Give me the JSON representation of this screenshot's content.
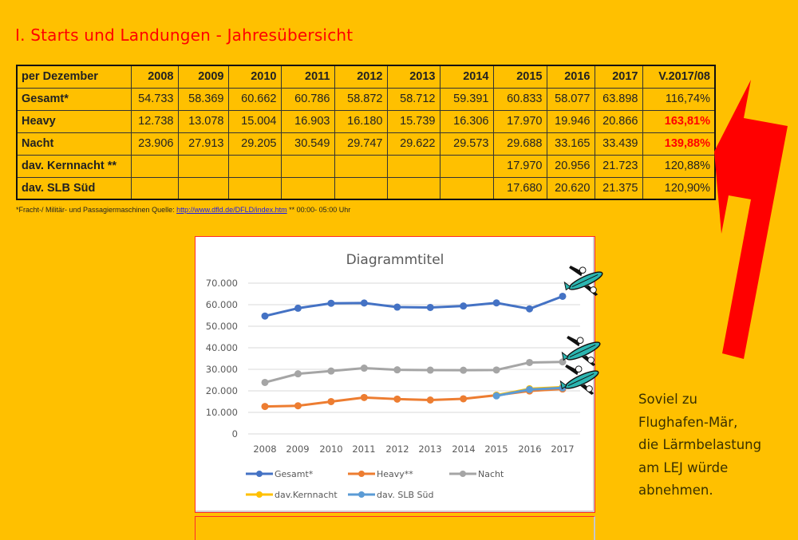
{
  "title": "I. Starts und Landungen - Jahresübersicht",
  "table": {
    "header": [
      "per Dezember",
      "2008",
      "2009",
      "2010",
      "2011",
      "2012",
      "2013",
      "2014",
      "2015",
      "2016",
      "2017",
      "V.2017/08"
    ],
    "rows": [
      {
        "label": "Gesamt*",
        "cells": [
          "54.733",
          "58.369",
          "60.662",
          "60.786",
          "58.872",
          "58.712",
          "59.391",
          "60.833",
          "58.077",
          "63.898",
          "116,74%"
        ],
        "highlight_last": false
      },
      {
        "label": "Heavy",
        "cells": [
          "12.738",
          "13.078",
          "15.004",
          "16.903",
          "16.180",
          "15.739",
          "16.306",
          "17.970",
          "19.946",
          "20.866",
          "163,81%"
        ],
        "highlight_last": true
      },
      {
        "label": "Nacht",
        "cells": [
          "23.906",
          "27.913",
          "29.205",
          "30.549",
          "29.747",
          "29.622",
          "29.573",
          "29.688",
          "33.165",
          "33.439",
          "139,88%"
        ],
        "highlight_last": true
      },
      {
        "label": "dav. Kernnacht **",
        "cells": [
          "",
          "",
          "",
          "",
          "",
          "",
          "",
          "17.970",
          "20.956",
          "21.723",
          "120,88%"
        ],
        "highlight_last": false
      },
      {
        "label": "dav. SLB Süd",
        "cells": [
          "",
          "",
          "",
          "",
          "",
          "",
          "",
          "17.680",
          "20.620",
          "21.375",
          "120,90%"
        ],
        "highlight_last": false
      }
    ],
    "highlight_color": "#FF0000"
  },
  "footnote": {
    "prefix": "*Fracht-/ Militär- und Passagiermaschinen  Quelle: ",
    "link": "http://www.dfld.de/DFLD/index.htm",
    "suffix": "  ** 00:00- 05:00 Uhr"
  },
  "side_text": [
    "Soviel zu",
    "Flughafen-Mär,",
    "die Lärmbelastung",
    "am LEJ würde",
    "abnehmen."
  ],
  "colors": {
    "background": "#FFC000",
    "title": "#FF0000",
    "arrow": "#FF0000"
  },
  "icons": {
    "arrow": "red-arrow-pointing-left-icon",
    "airplane": "airplane-icon"
  },
  "chart_data": {
    "type": "line",
    "title": "Diagrammtitel",
    "xlabel": "",
    "ylabel": "",
    "categories": [
      "2008",
      "2009",
      "2010",
      "2011",
      "2012",
      "2013",
      "2014",
      "2015",
      "2016",
      "2017"
    ],
    "ylim": [
      0,
      70000
    ],
    "yticks": [
      0,
      10000,
      20000,
      30000,
      40000,
      50000,
      60000,
      70000
    ],
    "ytick_labels": [
      "0",
      "10.000",
      "20.000",
      "30.000",
      "40.000",
      "50.000",
      "60.000",
      "70.000"
    ],
    "grid": true,
    "legend_position": "bottom",
    "series": [
      {
        "name": "Gesamt*",
        "color": "#4472C4",
        "values": [
          54733,
          58369,
          60662,
          60786,
          58872,
          58712,
          59391,
          60833,
          58077,
          63898
        ]
      },
      {
        "name": "Heavy**",
        "color": "#ED7D31",
        "values": [
          12738,
          13078,
          15004,
          16903,
          16180,
          15739,
          16306,
          17970,
          19946,
          20866
        ]
      },
      {
        "name": "Nacht",
        "color": "#A5A5A5",
        "values": [
          23906,
          27913,
          29205,
          30549,
          29747,
          29622,
          29573,
          29688,
          33165,
          33439
        ]
      },
      {
        "name": "dav.Kernnacht",
        "color": "#FFC000",
        "values": [
          null,
          null,
          null,
          null,
          null,
          null,
          null,
          17970,
          20956,
          21723
        ]
      },
      {
        "name": "dav. SLB Süd",
        "color": "#5B9BD5",
        "values": [
          null,
          null,
          null,
          null,
          null,
          null,
          null,
          17680,
          20620,
          21375
        ]
      }
    ],
    "annotations": [
      "airplane clipart at end of Gesamt* line",
      "airplane clipart at end of Nacht line",
      "airplane clipart at end of Heavy/Kernnacht/SLB lines"
    ]
  }
}
